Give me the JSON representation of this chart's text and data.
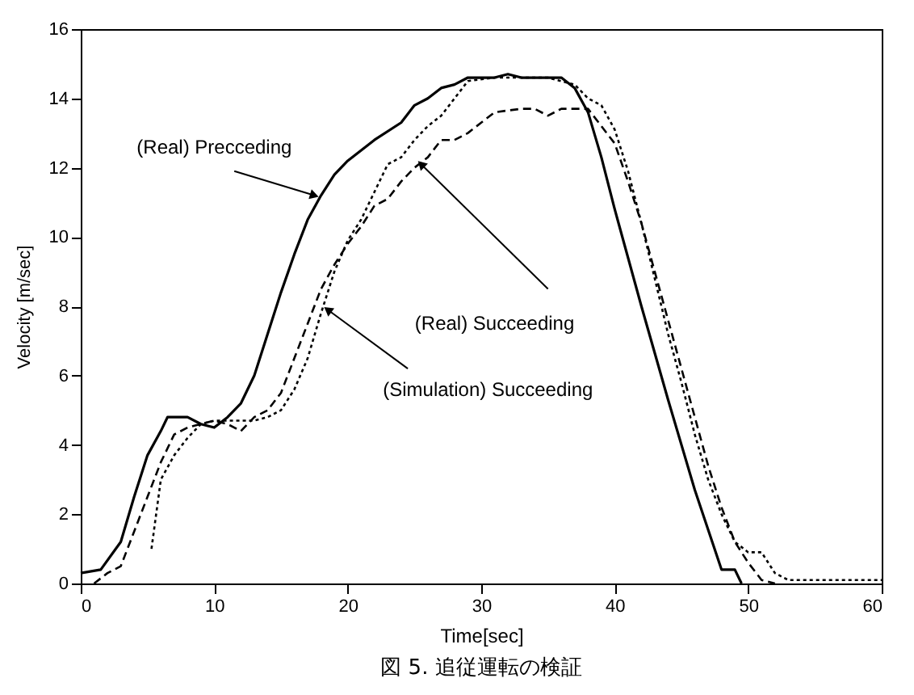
{
  "chart_data": {
    "type": "line",
    "title": "図 5. 追従運転の検証",
    "xlabel": "Time[sec]",
    "ylabel": "Velocity [m/sec]",
    "xlim": [
      0,
      60
    ],
    "xticks": [
      0,
      10,
      20,
      30,
      40,
      50,
      60
    ],
    "ylim": [
      0,
      16
    ],
    "yticks": [
      0,
      2,
      4,
      6,
      8,
      10,
      12,
      14,
      16
    ],
    "grid": false,
    "marker": "none",
    "series": [
      {
        "color": "#000000",
        "line_style": "solid",
        "x": [
          0,
          1.5,
          3,
          4,
          5,
          6,
          6.5,
          8,
          9,
          10,
          11,
          12,
          13,
          14,
          15,
          16,
          17,
          18,
          19,
          20,
          22,
          24,
          25,
          26,
          27,
          28,
          29,
          31,
          32,
          33,
          36,
          37,
          38,
          39,
          40,
          42,
          44,
          46,
          48,
          49,
          49.5
        ],
        "values": [
          0.3,
          0.4,
          1.2,
          2.5,
          3.7,
          4.4,
          4.8,
          4.8,
          4.6,
          4.5,
          4.8,
          5.2,
          6.0,
          7.2,
          8.4,
          9.5,
          10.5,
          11.2,
          11.8,
          12.2,
          12.8,
          13.3,
          13.8,
          14.0,
          14.3,
          14.4,
          14.6,
          14.6,
          14.7,
          14.6,
          14.6,
          14.3,
          13.6,
          12.3,
          10.8,
          8.0,
          5.3,
          2.7,
          0.4,
          0.4,
          0
        ]
      },
      {
        "color": "#000000",
        "line_style": "dashed",
        "x": [
          1,
          2,
          3,
          4,
          5,
          6,
          7,
          8,
          9,
          10,
          11,
          12,
          13,
          14,
          15,
          16,
          17,
          18,
          19,
          20,
          21,
          22,
          23,
          24,
          25,
          26,
          27,
          28,
          29,
          30,
          31,
          33,
          34,
          35,
          36,
          38,
          39,
          40,
          41,
          42,
          43,
          44,
          45,
          46,
          47,
          48,
          49,
          50,
          51,
          52
        ],
        "values": [
          0,
          0.3,
          0.5,
          1.5,
          2.5,
          3.5,
          4.3,
          4.5,
          4.6,
          4.7,
          4.6,
          4.4,
          4.8,
          5.0,
          5.5,
          6.5,
          7.5,
          8.5,
          9.2,
          9.8,
          10.3,
          10.9,
          11.1,
          11.6,
          12.0,
          12.3,
          12.8,
          12.8,
          13.0,
          13.3,
          13.6,
          13.7,
          13.7,
          13.5,
          13.7,
          13.7,
          13.2,
          12.7,
          11.6,
          10.4,
          9.0,
          7.6,
          6.2,
          4.8,
          3.4,
          2.2,
          1.2,
          0.6,
          0.1,
          0
        ]
      },
      {
        "color": "#000000",
        "line_style": "dotted",
        "x": [
          5.3,
          6,
          7,
          8,
          9,
          10,
          12,
          13,
          14,
          15,
          16,
          17,
          18,
          19,
          20,
          21,
          22,
          23,
          24,
          25,
          26,
          27,
          28,
          29,
          31,
          35,
          36,
          37,
          38,
          39,
          40,
          41,
          42,
          43,
          44,
          45,
          46,
          47,
          48,
          49,
          50,
          51,
          52,
          53,
          55,
          60
        ],
        "values": [
          1.0,
          3.0,
          3.7,
          4.2,
          4.6,
          4.7,
          4.7,
          4.7,
          4.8,
          5.0,
          5.6,
          6.5,
          7.8,
          9.0,
          9.9,
          10.5,
          11.3,
          12.1,
          12.3,
          12.8,
          13.2,
          13.5,
          14.0,
          14.5,
          14.6,
          14.6,
          14.5,
          14.4,
          14.0,
          13.8,
          13.1,
          11.9,
          10.4,
          8.8,
          7.2,
          5.8,
          4.3,
          3.0,
          2.0,
          1.2,
          0.9,
          0.9,
          0.3,
          0.1,
          0.1,
          0.1
        ]
      }
    ],
    "annotations": [
      {
        "text": "(Real) Precceding",
        "x": 17.5,
        "y": 11.2
      },
      {
        "text": "(Real) Succeeding",
        "x": 25.5,
        "y": 12.1
      },
      {
        "text": "(Simulation) Succeeding",
        "x": 18.5,
        "y": 7.9
      }
    ]
  }
}
